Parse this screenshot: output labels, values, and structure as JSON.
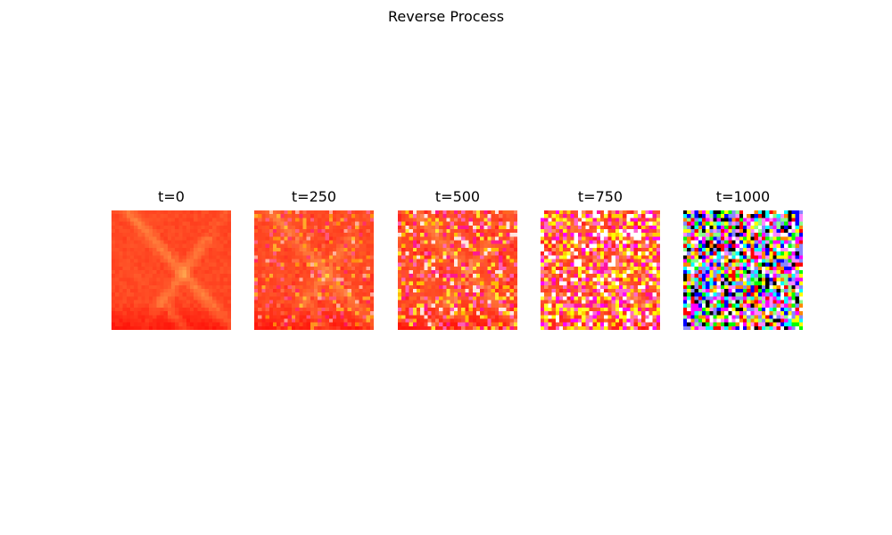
{
  "figure": {
    "title": "Reverse Process"
  },
  "panels": [
    {
      "label": "t=0",
      "noise_level": 0.0
    },
    {
      "label": "t=250",
      "noise_level": 0.25
    },
    {
      "label": "t=500",
      "noise_level": 0.5
    },
    {
      "label": "t=750",
      "noise_level": 0.75
    },
    {
      "label": "t=1000",
      "noise_level": 1.0
    }
  ],
  "image_grid": {
    "resolution": "32x32 pixels",
    "dominant_color": "#ff2a1a",
    "highlight_colors": [
      "#ffff00",
      "#ff66cc",
      "#ff00ff",
      "#ffffff"
    ],
    "noise_colors": [
      "#ff0000",
      "#00ff00",
      "#0000ff",
      "#00ffff",
      "#ff00ff",
      "#ffff00",
      "#000000",
      "#ffffff"
    ]
  }
}
